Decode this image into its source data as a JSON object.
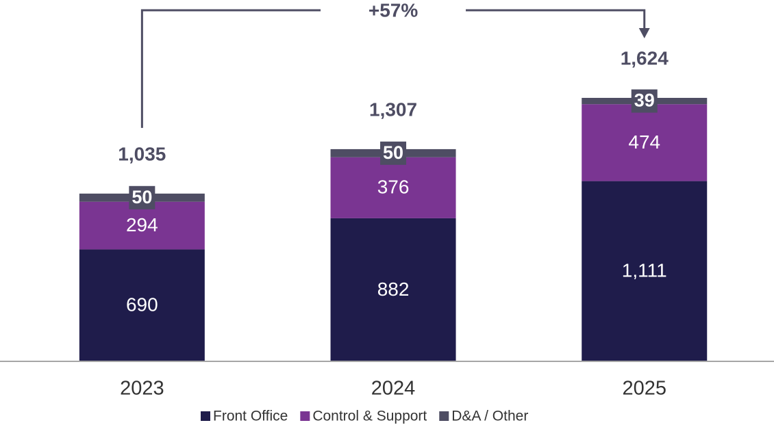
{
  "chart_data": {
    "type": "stacked_bar",
    "categories": [
      "2023",
      "2024",
      "2025"
    ],
    "series": [
      {
        "name": "Front Office",
        "color": "#1f1c4b",
        "values": [
          690,
          882,
          1111
        ],
        "value_labels": [
          "690",
          "882",
          "1,111"
        ]
      },
      {
        "name": "Control & Support",
        "color": "#7a3592",
        "values": [
          294,
          376,
          474
        ]
      },
      {
        "name": "D&A / Other",
        "color": "#4e4d63",
        "values": [
          50,
          50,
          39
        ]
      }
    ],
    "totals": {
      "values": [
        1035,
        1307,
        1624
      ],
      "value_labels": [
        "1,035",
        "1,307",
        "1,624"
      ]
    },
    "annotation": "+57%"
  }
}
